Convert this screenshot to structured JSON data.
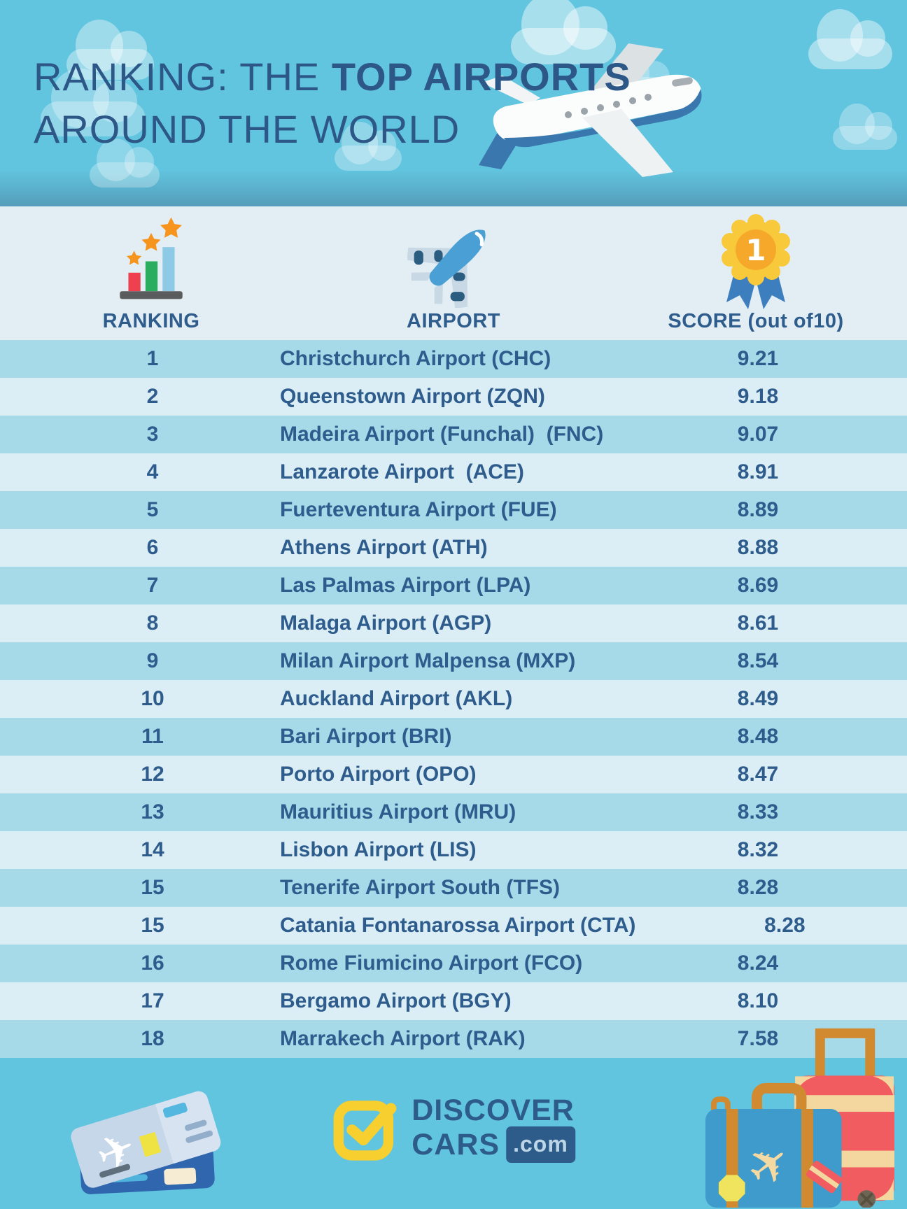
{
  "header": {
    "title_line1_regular": "RANKING: THE ",
    "title_line1_bold": "TOP AIRPORTS",
    "title_line2": "AROUND THE WORLD",
    "illustration": "airplane-with-clouds"
  },
  "chart_data": {
    "type": "table",
    "title": "RANKING: THE TOP AIRPORTS AROUND THE WORLD",
    "columns": [
      {
        "label": "RANKING",
        "icon": "podium-with-stars-icon"
      },
      {
        "label": "AIRPORT",
        "icon": "airplane-icon"
      },
      {
        "label": "SCORE (out of10)",
        "icon": "first-place-medal-icon"
      }
    ],
    "rows": [
      {
        "rank": "1",
        "airport": "Christchurch Airport (CHC)",
        "score": "9.21"
      },
      {
        "rank": "2",
        "airport": "Queenstown Airport (ZQN)",
        "score": "9.18"
      },
      {
        "rank": "3",
        "airport": "Madeira Airport (Funchal)  (FNC)",
        "score": "9.07"
      },
      {
        "rank": "4",
        "airport": "Lanzarote Airport  (ACE)",
        "score": "8.91"
      },
      {
        "rank": "5",
        "airport": "Fuerteventura Airport (FUE)",
        "score": "8.89"
      },
      {
        "rank": "6",
        "airport": "Athens Airport (ATH)",
        "score": "8.88"
      },
      {
        "rank": "7",
        "airport": "Las Palmas Airport (LPA)",
        "score": "8.69"
      },
      {
        "rank": "8",
        "airport": "Malaga Airport (AGP)",
        "score": "8.61"
      },
      {
        "rank": "9",
        "airport": "Milan Airport Malpensa (MXP)",
        "score": "8.54"
      },
      {
        "rank": "10",
        "airport": "Auckland Airport (AKL)",
        "score": "8.49"
      },
      {
        "rank": "11",
        "airport": "Bari Airport (BRI)",
        "score": "8.48"
      },
      {
        "rank": "12",
        "airport": "Porto Airport (OPO)",
        "score": "8.47"
      },
      {
        "rank": "13",
        "airport": "Mauritius Airport (MRU)",
        "score": "8.33"
      },
      {
        "rank": "14",
        "airport": "Lisbon Airport (LIS)",
        "score": "8.32"
      },
      {
        "rank": "15",
        "airport": "Tenerife Airport South (TFS)",
        "score": "8.28"
      },
      {
        "rank": "15",
        "airport": "Catania Fontanarossa Airport (CTA)",
        "score": "8.28"
      },
      {
        "rank": "16",
        "airport": "Rome Fiumicino Airport (FCO)",
        "score": "8.24"
      },
      {
        "rank": "17",
        "airport": "Bergamo Airport (BGY)",
        "score": "8.10"
      },
      {
        "rank": "18",
        "airport": "Marrakech Airport (RAK)",
        "score": "7.58"
      }
    ]
  },
  "footer": {
    "brand_discover": "DISCOVER",
    "brand_cars": "CARS",
    "brand_dotcom": ".com",
    "illustrations": [
      "plane-tickets-illustration",
      "luggage-illustration",
      "checkmark-logo-icon"
    ]
  },
  "medal_number": "1",
  "colors": {
    "sky": "#62C5DF",
    "panel": "#E2EEF3",
    "row_odd": "#A6DAE9",
    "row_even": "#DBEEF5",
    "text_blue": "#2E5C8C",
    "title_blue": "#2C5787",
    "logo_yellow": "#F7CF2E",
    "star_orange": "#F6941D",
    "medal_yellow": "#F8C93B",
    "medal_orange": "#F5A82A",
    "ribbon_blue": "#3D7EBF",
    "bar_red": "#EE404E",
    "bar_green": "#2AAD5F",
    "bar_blue": "#8EC9E6",
    "plane_blue": "#4AA0D5",
    "suitcase_red": "#F15C60",
    "suitcase_blue": "#3E9BCB",
    "strap_orange": "#D18A2F",
    "tan": "#F3D79E"
  }
}
